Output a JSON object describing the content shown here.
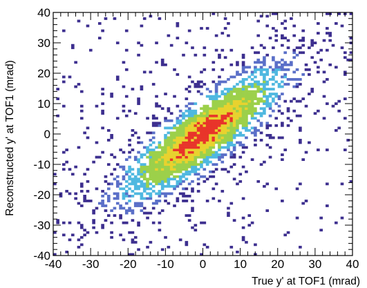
{
  "chart_data": {
    "type": "heatmap",
    "xlabel": "True y' at TOF1 (mrad)",
    "ylabel": "Reconstructed y' at TOF1 (mrad)",
    "xlim": [
      -40,
      40
    ],
    "ylim": [
      -40,
      40
    ],
    "x_ticks": [
      -40,
      -30,
      -20,
      -10,
      0,
      10,
      20,
      30,
      40
    ],
    "y_ticks": [
      -40,
      -30,
      -20,
      -10,
      0,
      10,
      20,
      30,
      40
    ],
    "bins": [
      100,
      100
    ],
    "correlation": "reconstructed ≈ true",
    "core_half_width_mrad": 4.5,
    "true_spread_mrad": 11,
    "colormap": [
      "#3d2f8f",
      "#5a6fc8",
      "#4fb8e0",
      "#9cd04a",
      "#e8d22e",
      "#e8342a"
    ],
    "grid": false
  }
}
